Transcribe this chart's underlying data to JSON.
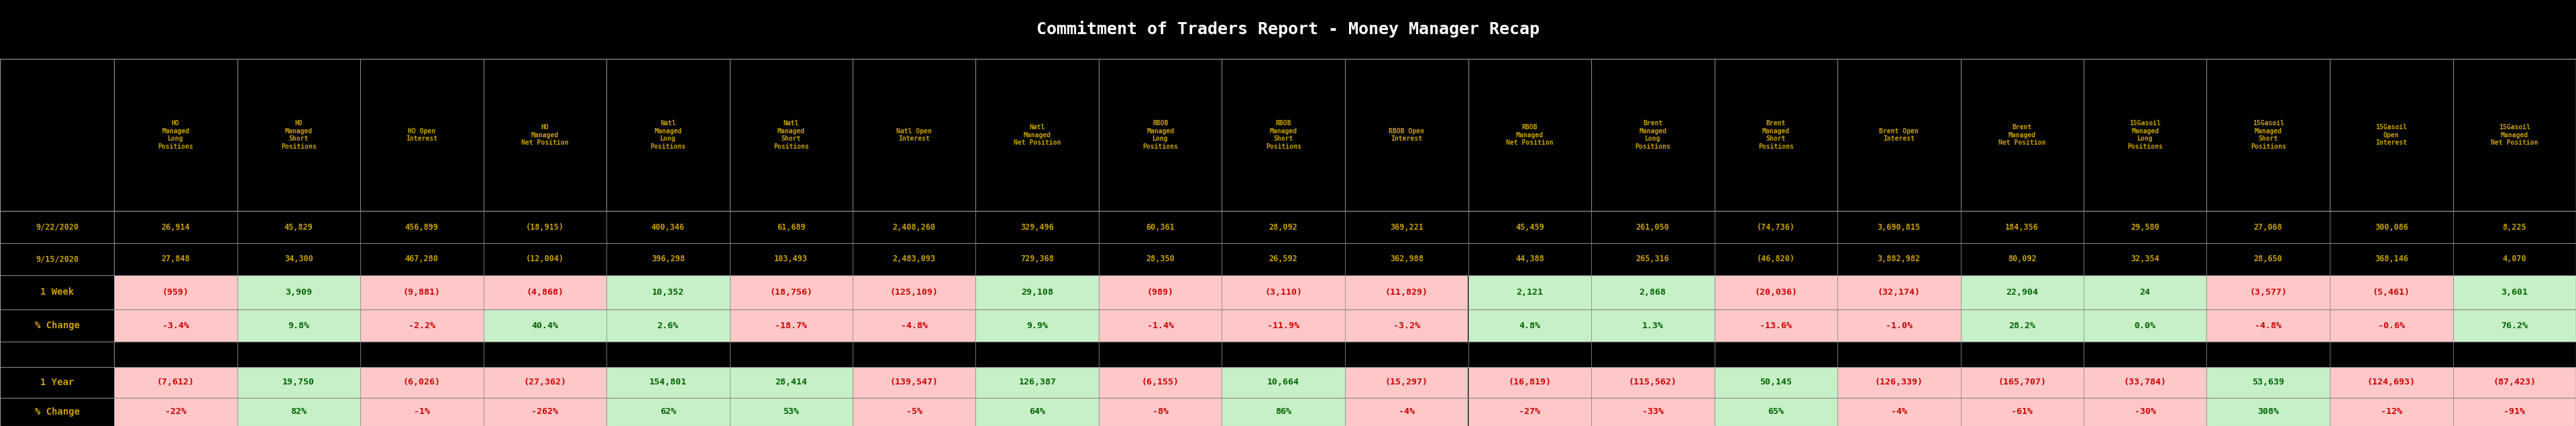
{
  "title": "Commitment of Traders Report - Money Manager Recap",
  "title_color": "#ffffff",
  "background_color": "#000000",
  "header_text_color": "#c8a000",
  "row_label_color": "#c8a000",
  "date_row_color": "#c8a000",
  "green_bg": "#c8f0c8",
  "red_bg": "#ffc8c8",
  "green_text": "#006400",
  "red_text": "#cc0000",
  "col_headers": [
    "HO\nManaged\nLong\nPositions",
    "HO\nManaged\nShort\nPositions",
    "HO Open\nInterest",
    "HO\nManaged\nNet Position",
    "Natl\nManaged\nLong\nPositions",
    "Natl\nManaged\nShort\nPositions",
    "Natl Open\nInterest",
    "Natl\nManaged\nNet Position",
    "RBOB\nManaged\nLong\nPositions",
    "RBOB\nManaged\nShort\nPositions",
    "RBOB Open\nInterest",
    "RBOB\nManaged\nNet Position",
    "Brent\nManaged\nLong\nPositions",
    "Brent\nManaged\nShort\nPositions",
    "Brent Open\nInterest",
    "Brent\nManaged\nNet Position",
    "15Gasoil\nManaged\nLong\nPositions",
    "15Gasoil\nManaged\nShort\nPositions",
    "15Gasoil\nOpen\nInterest",
    "15Gasoil\nManaged\nNet Position"
  ],
  "date1": "9/22/2020",
  "date2": "9/15/2020",
  "date1_values": [
    "26,914",
    "45,829",
    "456,899",
    "(18,915)",
    "400,346",
    "61,689",
    "2,408,260",
    "329,496",
    "60,361",
    "28,092",
    "369,221",
    "45,459",
    "261,050",
    "(74,736)",
    "3,690,815",
    "184,356",
    "29,580",
    "27,068",
    "300,086",
    "8,225"
  ],
  "date2_values": [
    "27,848",
    "34,300",
    "467,280",
    "(12,004)",
    "396,298",
    "103,493",
    "2,483,093",
    "729,368",
    "28,350",
    "26,592",
    "362,988",
    "44,388",
    "265,316",
    "(46,820)",
    "3,882,982",
    "80,092",
    "32,354",
    "28,650",
    "368,146",
    "4,070"
  ],
  "week_label": "1 Week",
  "week_values": [
    "(959)",
    "3,909",
    "(9,881)",
    "(4,868)",
    "10,352",
    "(18,756)",
    "(125,109)",
    "29,108",
    "(989)",
    "(3,110)",
    "(11,829)",
    "2,121",
    "2,868",
    "(20,036)",
    "(32,174)",
    "22,904",
    "24",
    "(3,577)",
    "(5,461)",
    "3,601"
  ],
  "week_pct": [
    "-3.4%",
    "9.8%",
    "-2.2%",
    "40.4%",
    "2.6%",
    "-18.7%",
    "-4.8%",
    "9.9%",
    "-1.4%",
    "-11.9%",
    "-3.2%",
    "4.8%",
    "1.3%",
    "-13.6%",
    "-1.0%",
    "28.2%",
    "0.0%",
    "-4.8%",
    "-0.6%",
    "76.2%"
  ],
  "week_value_colors": [
    "red",
    "green",
    "red",
    "red",
    "green",
    "red",
    "red",
    "green",
    "red",
    "red",
    "red",
    "green",
    "green",
    "red",
    "red",
    "green",
    "green",
    "red",
    "red",
    "green"
  ],
  "week_pct_colors": [
    "red",
    "green",
    "red",
    "green",
    "green",
    "red",
    "red",
    "green",
    "red",
    "red",
    "red",
    "green",
    "green",
    "red",
    "red",
    "green",
    "green",
    "red",
    "red",
    "green"
  ],
  "year_label": "1 Year",
  "year_values": [
    "(7,612)",
    "19,750",
    "(6,026)",
    "(27,362)",
    "154,801",
    "28,414",
    "(139,547)",
    "126,387",
    "(6,155)",
    "10,664",
    "(15,297)",
    "(16,819)",
    "(115,562)",
    "50,145",
    "(126,339)",
    "(165,707)",
    "(33,784)",
    "53,639",
    "(124,693)",
    "(87,423)"
  ],
  "year_pct": [
    "-22%",
    "82%",
    "-1%",
    "-262%",
    "62%",
    "53%",
    "-5%",
    "64%",
    "-8%",
    "86%",
    "-4%",
    "-27%",
    "-33%",
    "65%",
    "-4%",
    "-61%",
    "-30%",
    "308%",
    "-12%",
    "-91%"
  ],
  "year_value_colors": [
    "red",
    "green",
    "red",
    "red",
    "green",
    "green",
    "red",
    "green",
    "red",
    "green",
    "red",
    "red",
    "red",
    "green",
    "red",
    "red",
    "red",
    "green",
    "red",
    "red"
  ],
  "year_pct_colors": [
    "red",
    "green",
    "red",
    "red",
    "green",
    "green",
    "red",
    "green",
    "red",
    "green",
    "red",
    "red",
    "red",
    "green",
    "red",
    "red",
    "red",
    "green",
    "red",
    "red"
  ]
}
